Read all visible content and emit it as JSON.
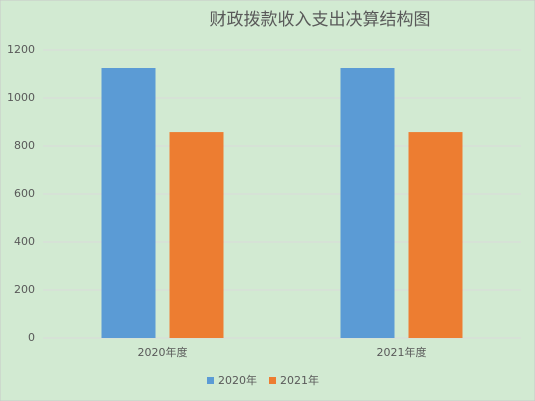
{
  "chart_data": {
    "type": "bar",
    "title": "财政拨款收入支出决算结构图",
    "categories": [
      "2020年度",
      "2021年度"
    ],
    "series": [
      {
        "name": "2020年",
        "color": "#5b9bd5",
        "values": [
          1125,
          1125
        ]
      },
      {
        "name": "2021年",
        "color": "#ed7d31",
        "values": [
          858,
          858
        ]
      }
    ],
    "ylim": [
      0,
      1200
    ],
    "yticks": [
      0,
      200,
      400,
      600,
      800,
      1000,
      1200
    ],
    "grid": true,
    "legend": "bottom"
  }
}
